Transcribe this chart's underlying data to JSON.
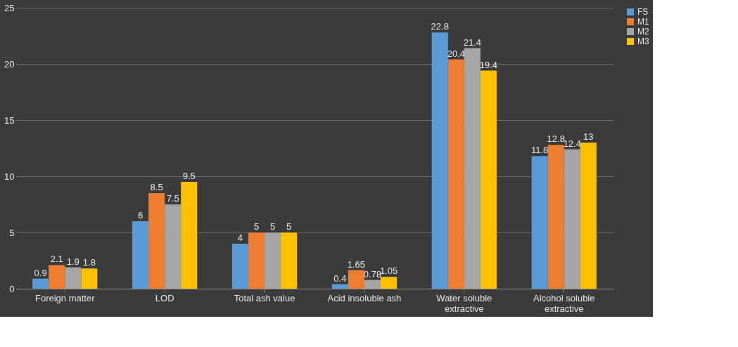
{
  "chart_data": {
    "type": "bar",
    "categories": [
      "Foreign matter",
      "LOD",
      "Total ash value",
      "Acid insoluble ash",
      "Water soluble extractive",
      "Alcohol soluble extractive"
    ],
    "series": [
      {
        "name": "FS",
        "color": "#5b9bd5",
        "values": [
          0.9,
          6,
          4,
          0.4,
          22.8,
          11.8
        ]
      },
      {
        "name": "M1",
        "color": "#ed7d31",
        "values": [
          2.1,
          8.5,
          5,
          1.65,
          20.4,
          12.8
        ]
      },
      {
        "name": "M2",
        "color": "#a5a5a5",
        "values": [
          1.9,
          7.5,
          5,
          0.78,
          21.4,
          12.4
        ]
      },
      {
        "name": "M3",
        "color": "#ffc000",
        "values": [
          1.8,
          9.5,
          5,
          1.05,
          19.4,
          13
        ]
      }
    ],
    "ylim": [
      0,
      25
    ],
    "yticks": [
      0,
      5,
      10,
      15,
      20,
      25
    ],
    "grid": "y",
    "legend": "right",
    "data_labels": true
  }
}
